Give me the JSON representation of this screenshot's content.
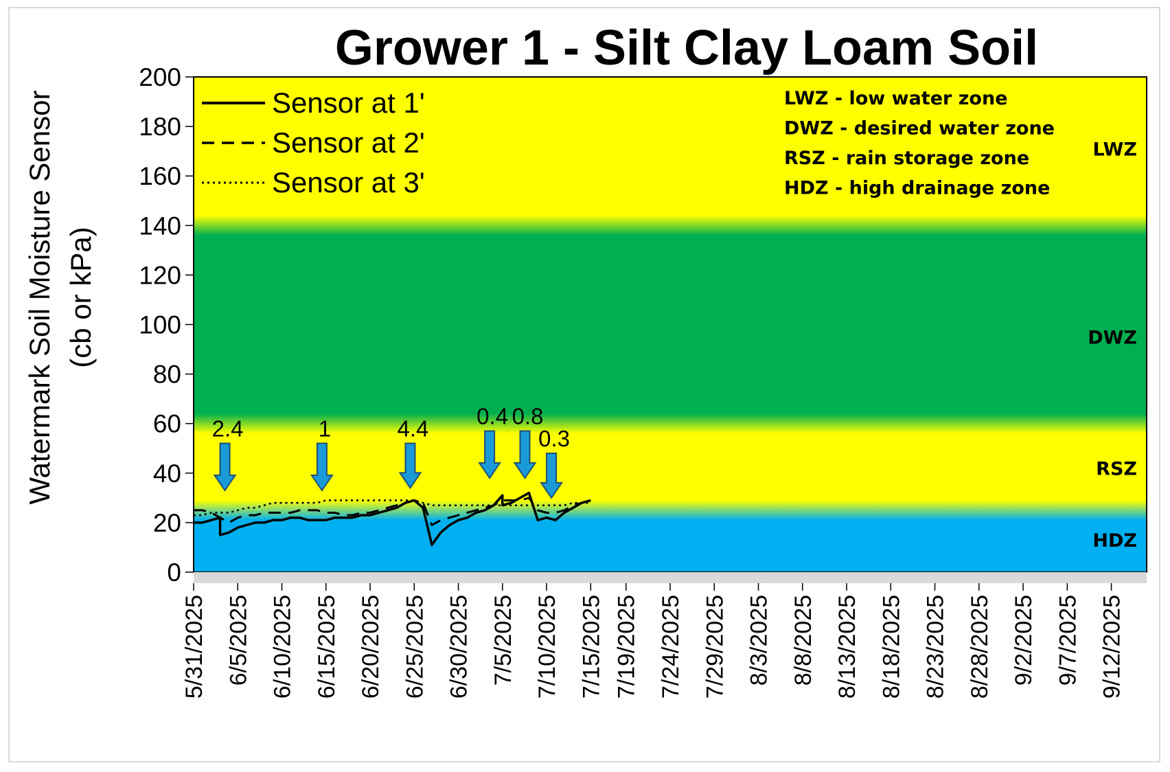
{
  "chart_data": {
    "type": "line",
    "title": "Grower 1 - Silt Clay Loam Soil",
    "ylabel_line1": "Watermark Soil Moisture Sensor",
    "ylabel_line2": "(cb or kPa)",
    "ylim": [
      0,
      200
    ],
    "yticks": [
      0,
      20,
      40,
      60,
      80,
      100,
      120,
      140,
      160,
      180,
      200
    ],
    "x_start": "5/31/2025",
    "x_end": "9/16/2025",
    "xticks": [
      "5/31/2025",
      "6/5/2025",
      "6/10/2025",
      "6/15/2025",
      "6/20/2025",
      "6/25/2025",
      "6/30/2025",
      "7/5/2025",
      "7/10/2025",
      "7/15/2025",
      "7/19/2025",
      "7/24/2025",
      "7/29/2025",
      "8/3/2025",
      "8/8/2025",
      "8/13/2025",
      "8/18/2025",
      "8/23/2025",
      "8/28/2025",
      "9/2/2025",
      "9/7/2025",
      "9/12/2025"
    ],
    "zones": [
      {
        "name": "HDZ",
        "from": 0,
        "to": 25,
        "color": "#00b0f0"
      },
      {
        "name": "RSZ",
        "from": 25,
        "to": 60,
        "color": "#ffff00"
      },
      {
        "name": "DWZ",
        "from": 60,
        "to": 140,
        "color": "#00b050"
      },
      {
        "name": "LWZ",
        "from": 140,
        "to": 200,
        "color": "#ffff00"
      }
    ],
    "zone_key": [
      "LWZ  - low water zone",
      "DWZ - desired water zone",
      "RSZ - rain storage zone",
      "HDZ - high drainage zone"
    ],
    "series": [
      {
        "name": "Sensor at 1'",
        "style": "solid",
        "points": [
          [
            "5/31/2025",
            20
          ],
          [
            "6/1/2025",
            20
          ],
          [
            "6/2/2025",
            21
          ],
          [
            "6/3/2025",
            22
          ],
          [
            "6/3/2025",
            15
          ],
          [
            "6/4/2025",
            16
          ],
          [
            "6/5/2025",
            18
          ],
          [
            "6/6/2025",
            19
          ],
          [
            "6/7/2025",
            20
          ],
          [
            "6/8/2025",
            20
          ],
          [
            "6/9/2025",
            21
          ],
          [
            "6/10/2025",
            21
          ],
          [
            "6/11/2025",
            22
          ],
          [
            "6/12/2025",
            22
          ],
          [
            "6/13/2025",
            21
          ],
          [
            "6/14/2025",
            21
          ],
          [
            "6/15/2025",
            21
          ],
          [
            "6/16/2025",
            22
          ],
          [
            "6/17/2025",
            22
          ],
          [
            "6/18/2025",
            22
          ],
          [
            "6/19/2025",
            23
          ],
          [
            "6/20/2025",
            23
          ],
          [
            "6/21/2025",
            24
          ],
          [
            "6/22/2025",
            25
          ],
          [
            "6/23/2025",
            26
          ],
          [
            "6/24/2025",
            28
          ],
          [
            "6/25/2025",
            29
          ],
          [
            "6/26/2025",
            26
          ],
          [
            "6/27/2025",
            11
          ],
          [
            "6/28/2025",
            16
          ],
          [
            "6/29/2025",
            19
          ],
          [
            "6/30/2025",
            21
          ],
          [
            "7/1/2025",
            22
          ],
          [
            "7/2/2025",
            24
          ],
          [
            "7/3/2025",
            25
          ],
          [
            "7/4/2025",
            27
          ],
          [
            "7/5/2025",
            31
          ],
          [
            "7/5/2025",
            27
          ],
          [
            "7/6/2025",
            28
          ],
          [
            "7/7/2025",
            30
          ],
          [
            "7/8/2025",
            32
          ],
          [
            "7/9/2025",
            21
          ],
          [
            "7/10/2025",
            22
          ],
          [
            "7/11/2025",
            21
          ],
          [
            "7/12/2025",
            24
          ],
          [
            "7/13/2025",
            26
          ],
          [
            "7/14/2025",
            28
          ],
          [
            "7/15/2025",
            29
          ]
        ]
      },
      {
        "name": "Sensor at 2'",
        "style": "dashed",
        "points": [
          [
            "5/31/2025",
            25
          ],
          [
            "6/1/2025",
            25
          ],
          [
            "6/2/2025",
            24
          ],
          [
            "6/3/2025",
            22
          ],
          [
            "6/4/2025",
            20
          ],
          [
            "6/5/2025",
            22
          ],
          [
            "6/6/2025",
            23
          ],
          [
            "6/7/2025",
            23
          ],
          [
            "6/8/2025",
            24
          ],
          [
            "6/9/2025",
            24
          ],
          [
            "6/10/2025",
            24
          ],
          [
            "6/11/2025",
            24
          ],
          [
            "6/12/2025",
            25
          ],
          [
            "6/13/2025",
            25
          ],
          [
            "6/14/2025",
            25
          ],
          [
            "6/15/2025",
            24
          ],
          [
            "6/16/2025",
            24
          ],
          [
            "6/17/2025",
            23
          ],
          [
            "6/18/2025",
            23
          ],
          [
            "6/19/2025",
            24
          ],
          [
            "6/20/2025",
            24
          ],
          [
            "6/21/2025",
            25
          ],
          [
            "6/22/2025",
            26
          ],
          [
            "6/23/2025",
            27
          ],
          [
            "6/24/2025",
            28
          ],
          [
            "6/25/2025",
            29
          ],
          [
            "6/26/2025",
            28
          ],
          [
            "6/27/2025",
            19
          ],
          [
            "6/28/2025",
            21
          ],
          [
            "6/29/2025",
            22
          ],
          [
            "6/30/2025",
            23
          ],
          [
            "7/1/2025",
            24
          ],
          [
            "7/2/2025",
            25
          ],
          [
            "7/3/2025",
            26
          ],
          [
            "7/4/2025",
            27
          ],
          [
            "7/5/2025",
            29
          ],
          [
            "7/6/2025",
            29
          ],
          [
            "7/7/2025",
            29
          ],
          [
            "7/8/2025",
            30
          ],
          [
            "7/9/2025",
            25
          ],
          [
            "7/10/2025",
            24
          ],
          [
            "7/11/2025",
            24
          ],
          [
            "7/12/2025",
            25
          ],
          [
            "7/13/2025",
            27
          ],
          [
            "7/14/2025",
            28
          ],
          [
            "7/15/2025",
            29
          ]
        ]
      },
      {
        "name": "Sensor at 3'",
        "style": "dotted",
        "points": [
          [
            "5/31/2025",
            23
          ],
          [
            "6/1/2025",
            23
          ],
          [
            "6/2/2025",
            24
          ],
          [
            "6/3/2025",
            24
          ],
          [
            "6/4/2025",
            24
          ],
          [
            "6/5/2025",
            25
          ],
          [
            "6/6/2025",
            26
          ],
          [
            "6/7/2025",
            26
          ],
          [
            "6/8/2025",
            27
          ],
          [
            "6/9/2025",
            28
          ],
          [
            "6/10/2025",
            28
          ],
          [
            "6/11/2025",
            28
          ],
          [
            "6/12/2025",
            28
          ],
          [
            "6/13/2025",
            28
          ],
          [
            "6/14/2025",
            28
          ],
          [
            "6/15/2025",
            29
          ],
          [
            "6/16/2025",
            29
          ],
          [
            "6/17/2025",
            29
          ],
          [
            "6/18/2025",
            29
          ],
          [
            "6/19/2025",
            29
          ],
          [
            "6/20/2025",
            29
          ],
          [
            "6/21/2025",
            29
          ],
          [
            "6/22/2025",
            29
          ],
          [
            "6/23/2025",
            29
          ],
          [
            "6/24/2025",
            29
          ],
          [
            "6/25/2025",
            29
          ],
          [
            "6/26/2025",
            28
          ],
          [
            "6/27/2025",
            27
          ],
          [
            "6/28/2025",
            27
          ],
          [
            "6/29/2025",
            27
          ],
          [
            "6/30/2025",
            27
          ],
          [
            "7/1/2025",
            27
          ],
          [
            "7/2/2025",
            27
          ],
          [
            "7/3/2025",
            27
          ],
          [
            "7/4/2025",
            27
          ],
          [
            "7/5/2025",
            27
          ],
          [
            "7/6/2025",
            27
          ],
          [
            "7/7/2025",
            27
          ],
          [
            "7/8/2025",
            27
          ],
          [
            "7/9/2025",
            27
          ],
          [
            "7/10/2025",
            27
          ],
          [
            "7/11/2025",
            27
          ],
          [
            "7/12/2025",
            27
          ],
          [
            "7/13/2025",
            28
          ],
          [
            "7/14/2025",
            28
          ],
          [
            "7/15/2025",
            28
          ]
        ]
      }
    ],
    "rain_events": [
      {
        "date": "6/3/2025",
        "label": "2.4",
        "y_bottom": 33,
        "y_top": 52
      },
      {
        "date": "6/14/2025",
        "label": "1",
        "y_bottom": 33,
        "y_top": 52
      },
      {
        "date": "6/24/2025",
        "label": "4.4",
        "y_bottom": 34,
        "y_top": 52
      },
      {
        "date": "7/3/2025",
        "label": "0.4",
        "y_bottom": 38,
        "y_top": 57
      },
      {
        "date": "7/7/2025",
        "label": "0.8",
        "y_bottom": 38,
        "y_top": 57
      },
      {
        "date": "7/10/2025",
        "label": "0.3",
        "y_bottom": 30,
        "y_top": 48
      }
    ],
    "colors": {
      "arrow_fill": "#1a9bd7",
      "arrow_stroke": "#1f4e79",
      "series_line": "#000000",
      "axis_floor": "#d9d9d9"
    }
  }
}
